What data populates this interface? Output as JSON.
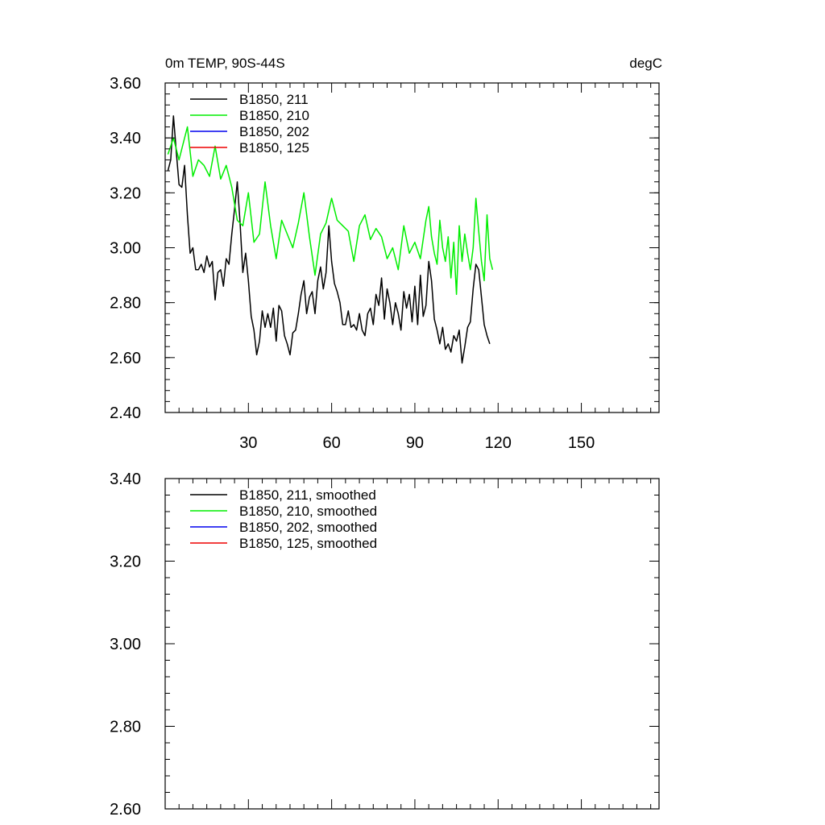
{
  "chart_data": [
    {
      "type": "line",
      "title_left": "0m TEMP, 90S-44S",
      "title_right": "degC",
      "xlabel": "",
      "ylabel": "",
      "xlim": [
        0,
        178
      ],
      "ylim": [
        2.4,
        3.6
      ],
      "xticks": [
        30,
        60,
        90,
        120,
        150
      ],
      "xtick_labels": [
        "30",
        "60",
        "90",
        "120",
        "150"
      ],
      "yticks": [
        2.4,
        2.6,
        2.8,
        3.0,
        3.2,
        3.4,
        3.6
      ],
      "ytick_labels": [
        "2.40",
        "2.60",
        "2.80",
        "3.00",
        "3.20",
        "3.40",
        "3.60"
      ],
      "legend_position": "top-left",
      "series": [
        {
          "name": "B1850, 211",
          "color": "#000000",
          "values": [
            3.28,
            3.32,
            3.48,
            3.35,
            3.23,
            3.22,
            3.3,
            3.12,
            2.98,
            3.0,
            2.92,
            2.92,
            2.94,
            2.91,
            2.97,
            2.93,
            2.95,
            2.81,
            2.91,
            2.92,
            2.86,
            2.96,
            2.94,
            3.05,
            3.14,
            3.24,
            3.09,
            2.91,
            2.98,
            2.88,
            2.75,
            2.7,
            2.61,
            2.66,
            2.77,
            2.71,
            2.76,
            2.71,
            2.78,
            2.66,
            2.79,
            2.77,
            2.68,
            2.65,
            2.61,
            2.69,
            2.7,
            2.76,
            2.83,
            2.88,
            2.76,
            2.82,
            2.84,
            2.76,
            2.88,
            2.93,
            2.85,
            2.91,
            3.08,
            2.95,
            2.87,
            2.84,
            2.8,
            2.72,
            2.72,
            2.77,
            2.71,
            2.72,
            2.7,
            2.76,
            2.7,
            2.68,
            2.76,
            2.78,
            2.72,
            2.83,
            2.79,
            2.89,
            2.74,
            2.85,
            2.8,
            2.72,
            2.8,
            2.76,
            2.7,
            2.84,
            2.78,
            2.83,
            2.73,
            2.86,
            2.72,
            2.9,
            2.75,
            2.79,
            2.95,
            2.88,
            2.74,
            2.7,
            2.65,
            2.71,
            2.63,
            2.65,
            2.62,
            2.68,
            2.66,
            2.7,
            2.58,
            2.64,
            2.71,
            2.73,
            2.85,
            2.94,
            2.92,
            2.82,
            2.72,
            2.68,
            2.65
          ],
          "x": [
            1,
            2,
            3,
            4,
            5,
            6,
            7,
            8,
            9,
            10,
            11,
            12,
            13,
            14,
            15,
            16,
            17,
            18,
            19,
            20,
            21,
            22,
            23,
            24,
            25,
            26,
            27,
            28,
            29,
            30,
            31,
            32,
            33,
            34,
            35,
            36,
            37,
            38,
            39,
            40,
            41,
            42,
            43,
            44,
            45,
            46,
            47,
            48,
            49,
            50,
            51,
            52,
            53,
            54,
            55,
            56,
            57,
            58,
            59,
            60,
            61,
            62,
            63,
            64,
            65,
            66,
            67,
            68,
            69,
            70,
            71,
            72,
            73,
            74,
            75,
            76,
            77,
            78,
            79,
            80,
            81,
            82,
            83,
            84,
            85,
            86,
            87,
            88,
            89,
            90,
            91,
            92,
            93,
            94,
            95,
            96,
            97,
            98,
            99,
            100,
            101,
            102,
            103,
            104,
            105,
            106,
            107,
            108,
            109,
            110,
            111,
            112,
            113,
            114,
            115,
            116,
            117
          ]
        },
        {
          "name": "B1850, 210",
          "color": "#00ee00",
          "values": [
            3.34,
            3.4,
            3.32,
            3.44,
            3.26,
            3.32,
            3.3,
            3.26,
            3.37,
            3.25,
            3.3,
            3.22,
            3.1,
            3.08,
            3.2,
            3.02,
            3.05,
            3.24,
            3.08,
            2.96,
            3.1,
            3.05,
            3.0,
            3.09,
            3.2,
            3.04,
            2.9,
            3.05,
            3.09,
            3.18,
            3.1,
            3.08,
            3.06,
            2.95,
            3.08,
            3.12,
            3.03,
            3.07,
            3.04,
            2.96,
            3.0,
            2.92,
            3.08,
            2.98,
            3.02,
            2.96,
            3.1,
            3.15,
            3.04,
            2.98,
            2.94,
            3.1,
            3.0,
            2.95,
            3.04,
            2.89,
            3.02,
            2.83,
            3.08,
            2.95,
            3.05,
            2.98,
            2.92,
            3.0,
            3.18,
            3.06,
            2.95,
            2.88,
            3.12,
            2.96,
            2.92
          ],
          "x": [
            1,
            3,
            5,
            8,
            10,
            12,
            14,
            16,
            18,
            20,
            22,
            24,
            26,
            28,
            30,
            32,
            34,
            36,
            38,
            40,
            42,
            44,
            46,
            48,
            50,
            52,
            54,
            56,
            58,
            60,
            62,
            64,
            66,
            68,
            70,
            72,
            74,
            76,
            78,
            80,
            82,
            84,
            86,
            88,
            90,
            92,
            94,
            95,
            96,
            97,
            98,
            99,
            100,
            101,
            102,
            103,
            104,
            105,
            106,
            107,
            108,
            109,
            110,
            111,
            112,
            113,
            114,
            115,
            116,
            117,
            118
          ]
        }
      ]
    }
  ],
  "panel1": {
    "legend": [
      "B1850, 211",
      "B1850, 210",
      "B1850, 202",
      "B1850, 125"
    ]
  },
  "panel2": {
    "legend": [
      "B1850, 211, smoothed",
      "B1850, 210, smoothed",
      "B1850, 202, smoothed",
      "B1850, 125, smoothed"
    ],
    "ytick_labels": [
      "2.60",
      "2.80",
      "3.00",
      "3.20",
      "3.40"
    ]
  }
}
